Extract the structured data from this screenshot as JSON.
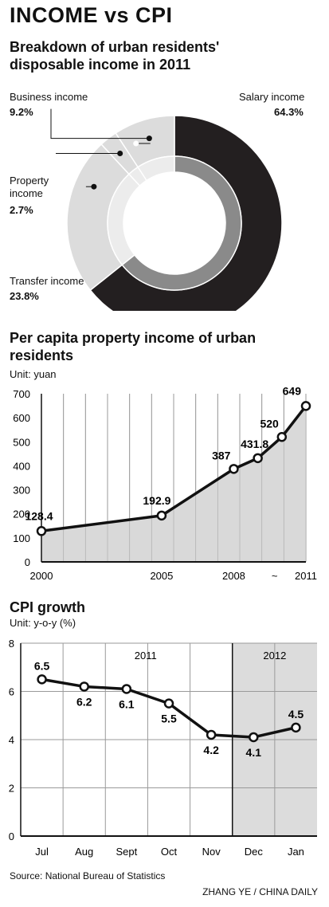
{
  "title": "INCOME vs CPI",
  "source": "Source: National Bureau of Statistics",
  "credit": "ZHANG YE / CHINA DAILY",
  "chart_data": [
    {
      "type": "pie",
      "title": "Breakdown of urban residents' disposable income in 2011",
      "labels": [
        "Salary income",
        "Transfer income",
        "Property income",
        "Business income"
      ],
      "values": [
        64.3,
        23.8,
        2.7,
        9.2
      ],
      "value_labels": [
        "64.3%",
        "23.8%",
        "2.7%",
        "9.2%"
      ],
      "colors": [
        "#231f20",
        "#dcdcdc",
        "#dcdcdc",
        "#dcdcdc"
      ],
      "inner_ring_colors": [
        "#8a8a8a",
        "#ececec",
        "#ececec",
        "#ececec"
      ],
      "donut": true
    },
    {
      "type": "area",
      "title": "Per capita property income of urban residents",
      "unit": "Unit: yuan",
      "x": [
        2000,
        2005,
        2008,
        2009,
        2010,
        2011
      ],
      "values": [
        128.4,
        192.9,
        387,
        431.8,
        520,
        649
      ],
      "value_labels": [
        "128.4",
        "192.9",
        "387",
        "431.8",
        "520",
        "649"
      ],
      "xtick_labels": [
        "2000",
        "2005",
        "2008",
        "~",
        "2011"
      ],
      "yticks": [
        0,
        100,
        200,
        300,
        400,
        500,
        600,
        700
      ],
      "ylim": [
        0,
        700
      ],
      "grid": true
    },
    {
      "type": "line",
      "title": "CPI growth",
      "unit": "Unit: y-o-y (%)",
      "categories": [
        "Jul",
        "Aug",
        "Sept",
        "Oct",
        "Nov",
        "Dec",
        "Jan"
      ],
      "values": [
        6.5,
        6.2,
        6.1,
        5.5,
        4.2,
        4.1,
        4.5
      ],
      "value_labels": [
        "6.5",
        "6.2",
        "6.1",
        "5.5",
        "4.2",
        "4.1",
        "4.5"
      ],
      "yticks": [
        0,
        2,
        4,
        6,
        8
      ],
      "ylim": [
        0,
        8
      ],
      "year_labels": [
        "2011",
        "2012"
      ],
      "grid": true
    }
  ]
}
